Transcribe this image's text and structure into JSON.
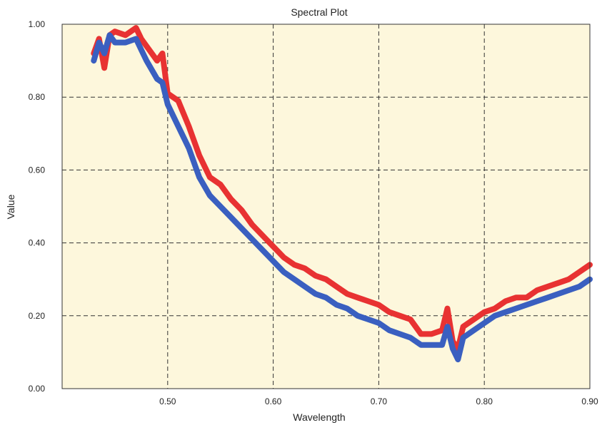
{
  "chart_data": {
    "type": "line",
    "title": "Spectral Plot",
    "xlabel": "Wavelength",
    "ylabel": "Value",
    "xlim": [
      0.4,
      0.9
    ],
    "ylim": [
      0.0,
      1.0
    ],
    "xticks": [
      "0.50",
      "0.60",
      "0.70",
      "0.80",
      "0.90"
    ],
    "yticks": [
      "0.00",
      "0.20",
      "0.40",
      "0.60",
      "0.80",
      "1.00"
    ],
    "grid": true,
    "background": "#fdf7dc",
    "series": [
      {
        "color": "#e83232",
        "x": [
          0.43,
          0.435,
          0.44,
          0.445,
          0.45,
          0.46,
          0.47,
          0.475,
          0.48,
          0.49,
          0.495,
          0.5,
          0.51,
          0.52,
          0.53,
          0.54,
          0.55,
          0.56,
          0.57,
          0.58,
          0.59,
          0.6,
          0.61,
          0.62,
          0.63,
          0.64,
          0.65,
          0.66,
          0.67,
          0.68,
          0.69,
          0.7,
          0.71,
          0.72,
          0.73,
          0.74,
          0.75,
          0.76,
          0.765,
          0.77,
          0.775,
          0.78,
          0.79,
          0.8,
          0.81,
          0.82,
          0.83,
          0.84,
          0.85,
          0.86,
          0.87,
          0.88,
          0.89,
          0.9
        ],
        "y": [
          0.92,
          0.96,
          0.88,
          0.97,
          0.98,
          0.97,
          0.99,
          0.96,
          0.94,
          0.9,
          0.92,
          0.81,
          0.79,
          0.72,
          0.64,
          0.58,
          0.56,
          0.52,
          0.49,
          0.45,
          0.42,
          0.39,
          0.36,
          0.34,
          0.33,
          0.31,
          0.3,
          0.28,
          0.26,
          0.25,
          0.24,
          0.23,
          0.21,
          0.2,
          0.19,
          0.15,
          0.15,
          0.16,
          0.22,
          0.13,
          0.11,
          0.17,
          0.19,
          0.21,
          0.22,
          0.24,
          0.25,
          0.25,
          0.27,
          0.28,
          0.29,
          0.3,
          0.32,
          0.34
        ]
      },
      {
        "color": "#3a5fc0",
        "x": [
          0.43,
          0.435,
          0.44,
          0.445,
          0.45,
          0.46,
          0.47,
          0.475,
          0.48,
          0.49,
          0.495,
          0.5,
          0.51,
          0.52,
          0.53,
          0.54,
          0.55,
          0.56,
          0.57,
          0.58,
          0.59,
          0.6,
          0.61,
          0.62,
          0.63,
          0.64,
          0.65,
          0.66,
          0.67,
          0.68,
          0.69,
          0.7,
          0.71,
          0.72,
          0.73,
          0.74,
          0.75,
          0.76,
          0.765,
          0.77,
          0.775,
          0.78,
          0.79,
          0.8,
          0.81,
          0.82,
          0.83,
          0.84,
          0.85,
          0.86,
          0.87,
          0.88,
          0.89,
          0.9
        ],
        "y": [
          0.9,
          0.95,
          0.92,
          0.97,
          0.95,
          0.95,
          0.96,
          0.93,
          0.9,
          0.85,
          0.84,
          0.78,
          0.72,
          0.66,
          0.58,
          0.53,
          0.5,
          0.47,
          0.44,
          0.41,
          0.38,
          0.35,
          0.32,
          0.3,
          0.28,
          0.26,
          0.25,
          0.23,
          0.22,
          0.2,
          0.19,
          0.18,
          0.16,
          0.15,
          0.14,
          0.12,
          0.12,
          0.12,
          0.17,
          0.11,
          0.08,
          0.14,
          0.16,
          0.18,
          0.2,
          0.21,
          0.22,
          0.23,
          0.24,
          0.25,
          0.26,
          0.27,
          0.28,
          0.3
        ]
      }
    ]
  }
}
